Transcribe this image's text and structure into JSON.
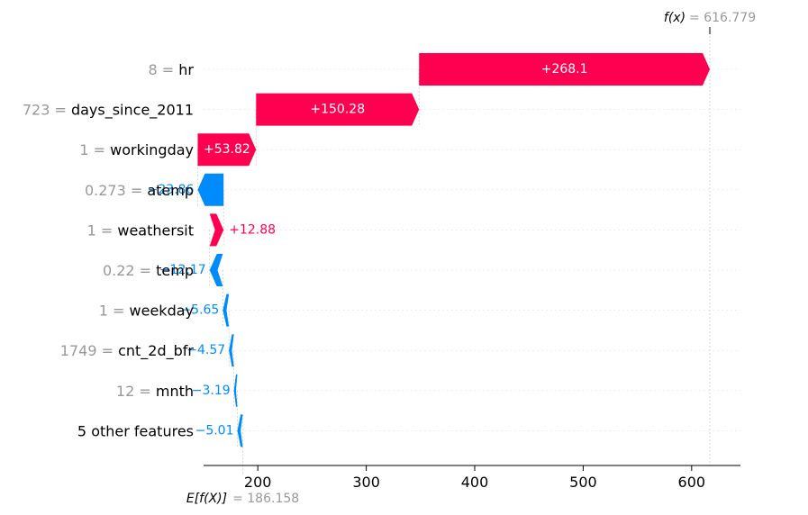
{
  "chart_data": {
    "type": "waterfall",
    "base_value": 186.158,
    "output_value": 616.779,
    "base_label": "E[f(X)]",
    "output_label": "f(x)",
    "base_value_text": "= 186.158",
    "output_value_text": "= 616.779",
    "xlim": [
      150,
      645
    ],
    "xticks": [
      200,
      300,
      400,
      500,
      600
    ],
    "colors": {
      "positive": "#ff0051",
      "negative": "#008bfb",
      "gray": "#999999",
      "grid": "#cccccc"
    },
    "features": [
      {
        "value": "8",
        "name": "hr",
        "contribution": 268.1,
        "label": "+268.1"
      },
      {
        "value": "723",
        "name": "days_since_2011",
        "contribution": 150.28,
        "label": "+150.28"
      },
      {
        "value": "1",
        "name": "workingday",
        "contribution": 53.82,
        "label": "+53.82"
      },
      {
        "value": "0.273",
        "name": "atemp",
        "contribution": -23.86,
        "label": "−23.86"
      },
      {
        "value": "1",
        "name": "weathersit",
        "contribution": 12.88,
        "label": "+12.88"
      },
      {
        "value": "0.22",
        "name": "temp",
        "contribution": -12.17,
        "label": "−12.17"
      },
      {
        "value": "1",
        "name": "weekday",
        "contribution": -5.65,
        "label": "−5.65"
      },
      {
        "value": "1749",
        "name": "cnt_2d_bfr",
        "contribution": -4.57,
        "label": "−4.57"
      },
      {
        "value": "12",
        "name": "mnth",
        "contribution": -3.19,
        "label": "−3.19"
      },
      {
        "value": "",
        "name": "5 other features",
        "contribution": -5.01,
        "label": "−5.01"
      }
    ]
  }
}
